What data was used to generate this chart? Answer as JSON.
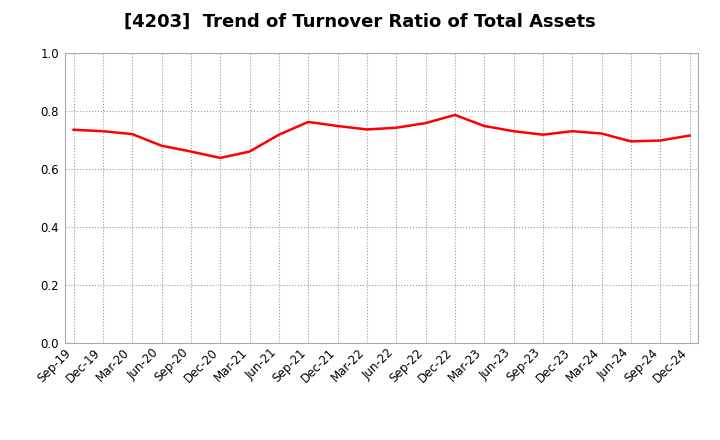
{
  "title": "[4203]  Trend of Turnover Ratio of Total Assets",
  "x_labels": [
    "Sep-19",
    "Dec-19",
    "Mar-20",
    "Jun-20",
    "Sep-20",
    "Dec-20",
    "Mar-21",
    "Jun-21",
    "Sep-21",
    "Dec-21",
    "Mar-22",
    "Jun-22",
    "Sep-22",
    "Dec-22",
    "Mar-23",
    "Jun-23",
    "Sep-23",
    "Dec-23",
    "Mar-24",
    "Jun-24",
    "Sep-24",
    "Dec-24"
  ],
  "y_values": [
    0.735,
    0.73,
    0.72,
    0.68,
    0.66,
    0.638,
    0.66,
    0.718,
    0.762,
    0.748,
    0.736,
    0.742,
    0.758,
    0.786,
    0.748,
    0.73,
    0.718,
    0.73,
    0.722,
    0.695,
    0.698,
    0.715
  ],
  "line_color": "#ff0000",
  "line_width": 1.8,
  "ylim": [
    0.0,
    1.0
  ],
  "yticks": [
    0.0,
    0.2,
    0.4,
    0.6,
    0.8,
    1.0
  ],
  "title_fontsize": 13,
  "tick_fontsize": 8.5,
  "bg_color": "#ffffff",
  "grid_color": "#999999",
  "grid_style": ":"
}
